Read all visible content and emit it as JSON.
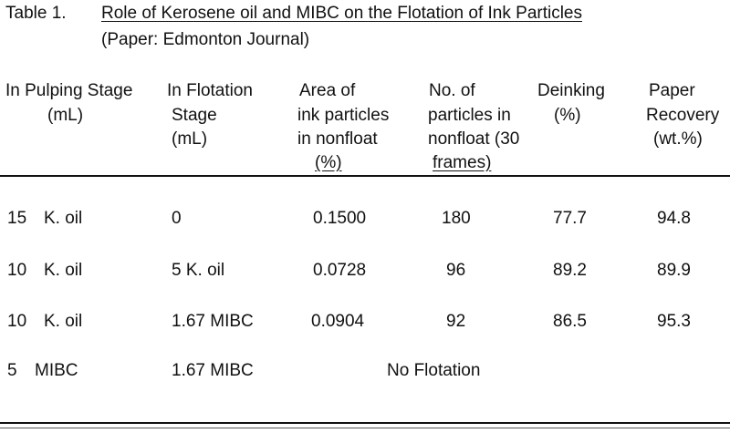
{
  "table": {
    "label": "Table 1.",
    "title": "Role of Kerosene oil and MIBC on the Flotation of Ink Particles",
    "subtitle": "(Paper: Edmonton Journal)",
    "headers": {
      "pulping": {
        "l1": "In Pulping Stage",
        "l2": "(mL)"
      },
      "flotation": {
        "l1": "In Flotation",
        "l2": "Stage",
        "l3": "(mL)"
      },
      "area": {
        "l1": "Area of",
        "l2": "ink particles",
        "l3": "in nonfloat",
        "l4": "(%)"
      },
      "count": {
        "l1": "No. of",
        "l2": "particles in",
        "l3": "nonfloat (30",
        "l4": "frames)"
      },
      "deinking": {
        "l1": "Deinking",
        "l2": "(%)"
      },
      "recovery": {
        "l1": "Paper",
        "l2": "Recovery",
        "l3": "(wt.%)"
      }
    },
    "rows": [
      {
        "pulp_amount": "15",
        "pulp_agent": "K. oil",
        "flotation": "0",
        "area": "0.1500",
        "count": "180",
        "deinking": "77.7",
        "recovery": "94.8"
      },
      {
        "pulp_amount": "10",
        "pulp_agent": "K. oil",
        "flotation": "5 K. oil",
        "area": "0.0728",
        "count": "96",
        "deinking": "89.2",
        "recovery": "89.9"
      },
      {
        "pulp_amount": "10",
        "pulp_agent": "K. oil",
        "flotation": "1.67 MIBC",
        "area": "0.0904",
        "count": "92",
        "deinking": "86.5",
        "recovery": "95.3"
      },
      {
        "pulp_amount": "5",
        "pulp_agent": "MIBC",
        "flotation": "1.67 MIBC",
        "note": "No Flotation"
      }
    ]
  }
}
